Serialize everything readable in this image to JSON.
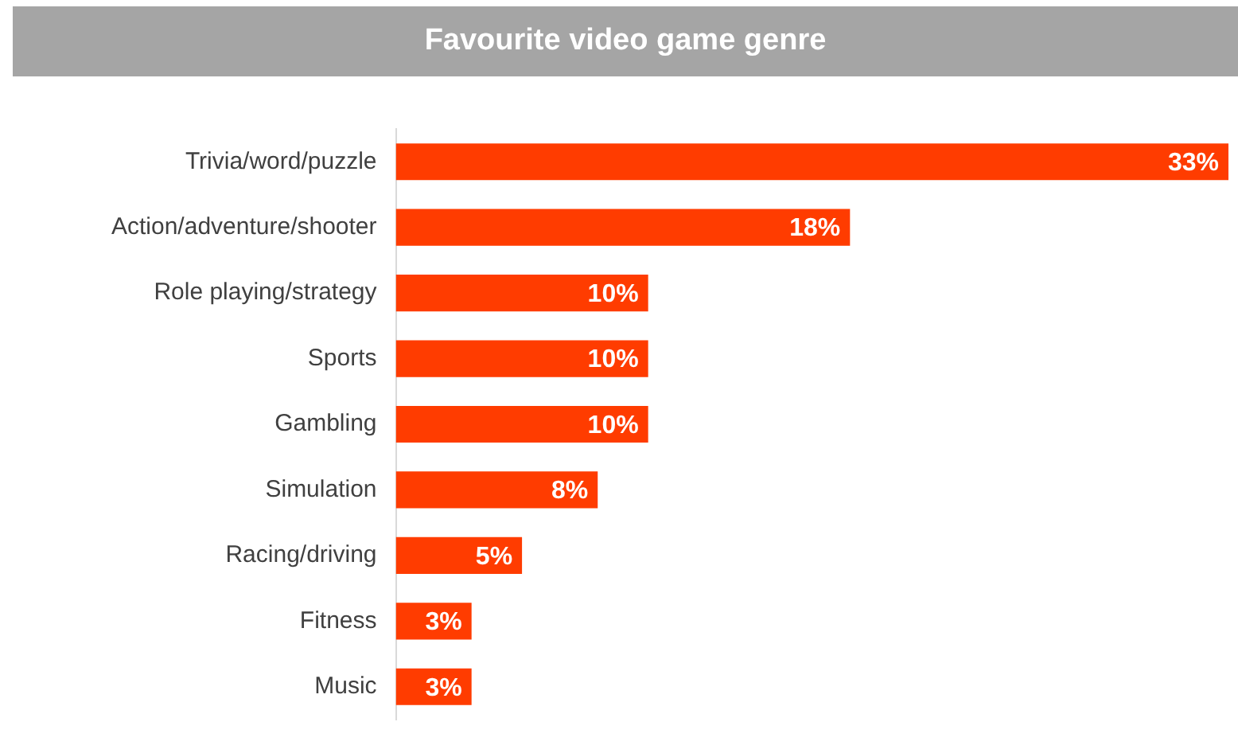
{
  "chart_data": {
    "type": "bar",
    "orientation": "horizontal",
    "title": "Favourite video game genre",
    "categories": [
      "Trivia/word/puzzle",
      "Action/adventure/shooter",
      "Role playing/strategy",
      "Sports",
      "Gambling",
      "Simulation",
      "Racing/driving",
      "Fitness",
      "Music"
    ],
    "values": [
      33,
      18,
      10,
      10,
      10,
      8,
      5,
      3,
      3
    ],
    "value_labels": [
      "33%",
      "18%",
      "10%",
      "10%",
      "10%",
      "8%",
      "5%",
      "3%",
      "3%"
    ],
    "color": "#ff3c00"
  }
}
